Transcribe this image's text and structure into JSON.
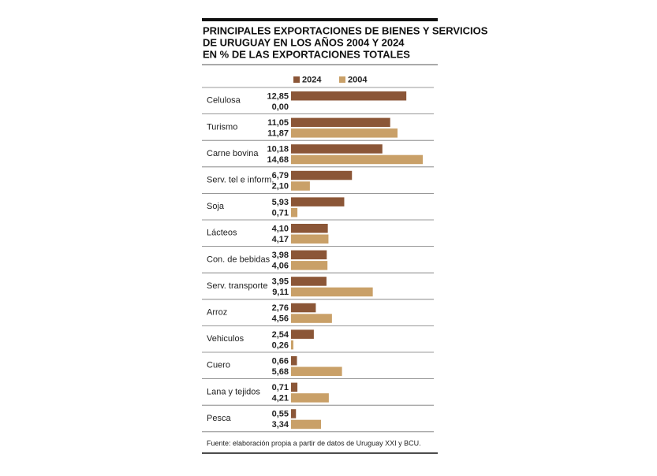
{
  "chart_data": {
    "type": "hbar",
    "title": [
      "PRINCIPALES EXPORTACIONES DE BIENES Y SERVICIOS",
      "DE URUGUAY EN LOS AÑOS 2004 Y 2024",
      "EN % DE LAS EXPORTACIONES TOTALES"
    ],
    "categories": [
      "Celulosa",
      "Turismo",
      "Carne bovina",
      "Serv. tel e inform.",
      "Soja",
      "Lácteos",
      "Con. de bebidas",
      "Serv. transporte",
      "Arroz",
      "Vehiculos",
      "Cuero",
      "Lana y tejidos",
      "Pesca"
    ],
    "series": [
      {
        "name": "2024",
        "color": "#8b5637",
        "values": [
          12.85,
          11.05,
          10.18,
          6.79,
          5.93,
          4.1,
          3.98,
          3.95,
          2.76,
          2.54,
          0.66,
          0.71,
          0.55
        ],
        "value_labels": [
          "12,85",
          "11,05",
          "10,18",
          "6,79",
          "5,93",
          "4,10",
          "3,98",
          "3,95",
          "2,76",
          "2,54",
          "0,66",
          "0,71",
          "0,55"
        ]
      },
      {
        "name": "2004",
        "color": "#c9a068",
        "values": [
          0.0,
          11.87,
          14.68,
          2.1,
          0.71,
          4.17,
          4.06,
          9.11,
          4.56,
          0.26,
          5.68,
          4.21,
          3.34
        ],
        "value_labels": [
          "0,00",
          "11,87",
          "14,68",
          "2,10",
          "0,71",
          "4,17",
          "4,06",
          "9,11",
          "4,56",
          "0,26",
          "5,68",
          "4,21",
          "3,34"
        ]
      }
    ],
    "source": "Fuente: elaboración propia a partir de datos de Uruguay XXI y BCU."
  }
}
